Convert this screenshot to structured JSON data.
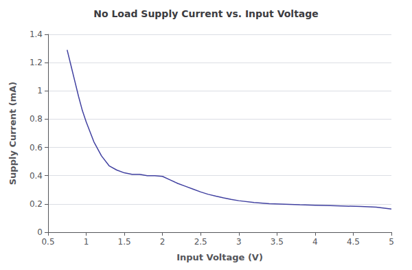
{
  "chart_data": {
    "type": "line",
    "title": "No Load Supply Current vs. Input Voltage",
    "xlabel": "Input Voltage (V)",
    "ylabel": "Supply Current (mA)",
    "x": [
      0.75,
      0.8,
      0.85,
      0.9,
      0.95,
      1.0,
      1.1,
      1.2,
      1.3,
      1.4,
      1.5,
      1.6,
      1.7,
      1.8,
      1.9,
      2.0,
      2.1,
      2.2,
      2.3,
      2.4,
      2.5,
      2.6,
      2.7,
      2.8,
      2.9,
      3.0,
      3.2,
      3.4,
      3.6,
      3.8,
      4.0,
      4.2,
      4.4,
      4.6,
      4.8,
      5.0
    ],
    "values": [
      1.29,
      1.18,
      1.07,
      0.96,
      0.86,
      0.78,
      0.64,
      0.54,
      0.47,
      0.44,
      0.42,
      0.41,
      0.41,
      0.4,
      0.4,
      0.395,
      0.37,
      0.345,
      0.325,
      0.305,
      0.285,
      0.268,
      0.255,
      0.243,
      0.232,
      0.223,
      0.21,
      0.202,
      0.198,
      0.194,
      0.191,
      0.188,
      0.185,
      0.182,
      0.178,
      0.164
    ],
    "color": "#4040a0",
    "xlim": [
      0.5,
      5.0
    ],
    "ylim": [
      0,
      1.4
    ],
    "xticks": [
      0.5,
      1,
      1.5,
      2,
      2.5,
      3,
      3.5,
      4,
      4.5,
      5
    ],
    "yticks": [
      0,
      0.2,
      0.4,
      0.6,
      0.8,
      1,
      1.2,
      1.4
    ],
    "grid": "y"
  }
}
